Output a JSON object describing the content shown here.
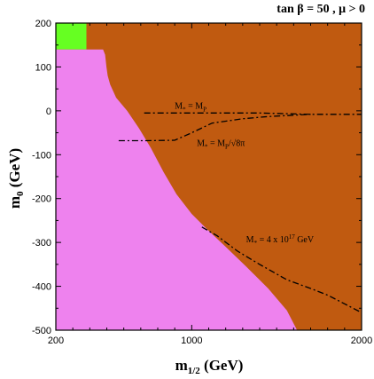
{
  "chart_data": {
    "type": "area",
    "title": "tan β = 50 ,  μ > 0",
    "xlabel_main": "m",
    "xlabel_sub": "1/2",
    "xlabel_unit": " (GeV)",
    "ylabel_main": "m",
    "ylabel_sub": "0",
    "ylabel_unit": " (GeV)",
    "xlim": [
      200,
      2000
    ],
    "ylim": [
      -500,
      200
    ],
    "x_ticks": [
      200,
      1000,
      2000
    ],
    "x_tick_labels": [
      "200",
      "1000",
      "2000"
    ],
    "y_ticks": [
      200,
      100,
      0,
      -100,
      -200,
      -300,
      -400,
      -500
    ],
    "y_tick_labels": [
      "200",
      "100",
      "0",
      "-100",
      "-200",
      "-300",
      "-400",
      "-500"
    ],
    "colors": {
      "excluded_brown": "#c05a10",
      "excluded_pink": "#ee82ee",
      "allowed_green": "#66ff22",
      "frame": "#000000"
    },
    "regions": [
      {
        "name": "green",
        "color_key": "allowed_green",
        "polygon": [
          [
            200,
            200
          ],
          [
            380,
            200
          ],
          [
            380,
            140
          ],
          [
            200,
            140
          ]
        ]
      },
      {
        "name": "pink",
        "color_key": "excluded_pink",
        "polygon": [
          [
            200,
            140
          ],
          [
            478,
            140
          ],
          [
            490,
            128
          ],
          [
            498,
            100
          ],
          [
            505,
            80
          ],
          [
            520,
            60
          ],
          [
            555,
            30
          ],
          [
            620,
            0
          ],
          [
            690,
            -40
          ],
          [
            760,
            -85
          ],
          [
            835,
            -140
          ],
          [
            910,
            -190
          ],
          [
            1000,
            -235
          ],
          [
            1090,
            -270
          ],
          [
            1200,
            -310
          ],
          [
            1320,
            -355
          ],
          [
            1450,
            -405
          ],
          [
            1560,
            -455
          ],
          [
            1620,
            -500
          ],
          [
            200,
            -500
          ]
        ]
      }
    ],
    "curves": [
      {
        "id": "mstar-mp",
        "label_main": "M",
        "label_sub": "*",
        "label_rest": " = M",
        "label_sub2": "P",
        "label_pos": [
          900,
          5
        ],
        "points": [
          [
            720,
            -5
          ],
          [
            1100,
            -5
          ],
          [
            1400,
            -5
          ],
          [
            1700,
            -8
          ],
          [
            2000,
            -8
          ]
        ]
      },
      {
        "id": "mstar-mp-8pi",
        "label_main": "M",
        "label_sub": "*",
        "label_rest": " = M",
        "label_sub2": "P",
        "label_tail": "/√8π",
        "label_pos": [
          1030,
          -80
        ],
        "points": [
          [
            570,
            -68
          ],
          [
            720,
            -68
          ],
          [
            900,
            -67
          ],
          [
            1000,
            -50
          ],
          [
            1120,
            -28
          ],
          [
            1300,
            -18
          ],
          [
            1450,
            -13
          ],
          [
            1700,
            -8
          ]
        ]
      },
      {
        "id": "mstar-4e17",
        "label_main": "M",
        "label_sub": "*",
        "label_rest": " = 4 x 10",
        "label_sup": "17",
        "label_tail": " GeV",
        "label_pos": [
          1320,
          -300
        ],
        "points": [
          [
            1060,
            -265
          ],
          [
            1150,
            -285
          ],
          [
            1270,
            -320
          ],
          [
            1400,
            -350
          ],
          [
            1560,
            -385
          ],
          [
            1700,
            -405
          ],
          [
            1800,
            -420
          ],
          [
            1900,
            -440
          ],
          [
            2000,
            -460
          ]
        ]
      }
    ],
    "grid": false,
    "legend": "none"
  }
}
